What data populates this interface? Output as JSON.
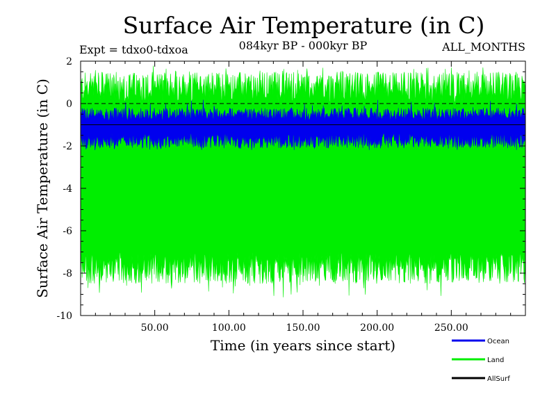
{
  "chart_data": {
    "type": "line",
    "title": "Surface Air Temperature (in C)",
    "subtitle_left": "Expt = tdxo0-tdxoa",
    "subtitle_center": "084kyr BP - 000kyr BP",
    "subtitle_right": "ALL_MONTHS",
    "xlabel": "Time (in years since start)",
    "ylabel": "Surface Air Temperature (in C)",
    "xlim": [
      0,
      300
    ],
    "ylim": [
      -10,
      2
    ],
    "x_ticks": [
      50,
      100,
      150,
      200,
      250
    ],
    "x_tick_labels": [
      "50.00",
      "100.00",
      "150.00",
      "200.00",
      "250.00"
    ],
    "y_ticks": [
      -10,
      -8,
      -6,
      -4,
      -2,
      0,
      2
    ],
    "y_tick_labels": [
      "-10",
      "-8",
      "-6",
      "-4",
      "-2",
      "0",
      "2"
    ],
    "reference_line": {
      "y": 0,
      "style": "dashed"
    },
    "legend_placement": "bottom-right",
    "series": [
      {
        "name": "Land",
        "color": "#00ee00",
        "band": {
          "lower": [
            -8.5,
            -7.0
          ],
          "upper": [
            0.0,
            1.5
          ],
          "min": -9.2,
          "max": 1.8
        }
      },
      {
        "name": "Ocean",
        "color": "#0000ee",
        "band": {
          "lower": [
            -2.1,
            -1.4
          ],
          "upper": [
            -0.8,
            -0.2
          ],
          "min": -2.2,
          "max": 0.2
        }
      },
      {
        "name": "AllSurf",
        "color": "#000000",
        "band": {
          "lower": [
            -1.0,
            -1.0
          ],
          "upper": [
            -1.0,
            -1.0
          ]
        }
      }
    ],
    "legend_order": [
      "Ocean",
      "Land",
      "AllSurf"
    ]
  }
}
